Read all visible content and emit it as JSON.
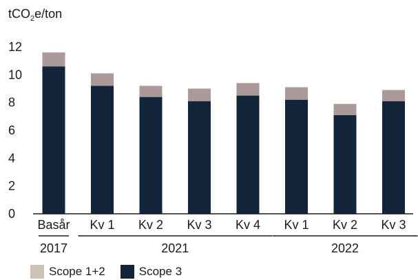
{
  "chart_data": {
    "type": "bar",
    "stacked": true,
    "unit_label": {
      "prefix": "tCO",
      "subscript": "2",
      "suffix": "e/ton"
    },
    "categories": [
      "Basår",
      "Kv 1",
      "Kv 2",
      "Kv 3",
      "Kv 4",
      "Kv 1",
      "Kv 2",
      "Kv 3"
    ],
    "groups": [
      {
        "label": "2017",
        "categories": [
          "Basår"
        ]
      },
      {
        "label": "2021",
        "categories": [
          "Kv 1",
          "Kv 2",
          "Kv 3",
          "Kv 4"
        ]
      },
      {
        "label": "2022",
        "categories": [
          "Kv 1",
          "Kv 2",
          "Kv 3"
        ]
      }
    ],
    "series": [
      {
        "name": "Scope 3",
        "color": "#13253a",
        "values": [
          10.6,
          9.2,
          8.4,
          8.1,
          8.5,
          8.2,
          7.1,
          8.1
        ]
      },
      {
        "name": "Scope 1+2",
        "color": "#ab9a99",
        "values": [
          1.0,
          0.9,
          0.8,
          0.9,
          0.9,
          0.9,
          0.8,
          0.8
        ]
      }
    ],
    "ylim": [
      0,
      12
    ],
    "yticks": [
      0,
      2,
      4,
      6,
      8,
      10,
      12
    ],
    "grid": false,
    "legend_position": "bottom-left",
    "legend": [
      {
        "label": "Scope 1+2",
        "color": "#cdc2b8"
      },
      {
        "label": "Scope 3",
        "color": "#13253a"
      }
    ]
  }
}
